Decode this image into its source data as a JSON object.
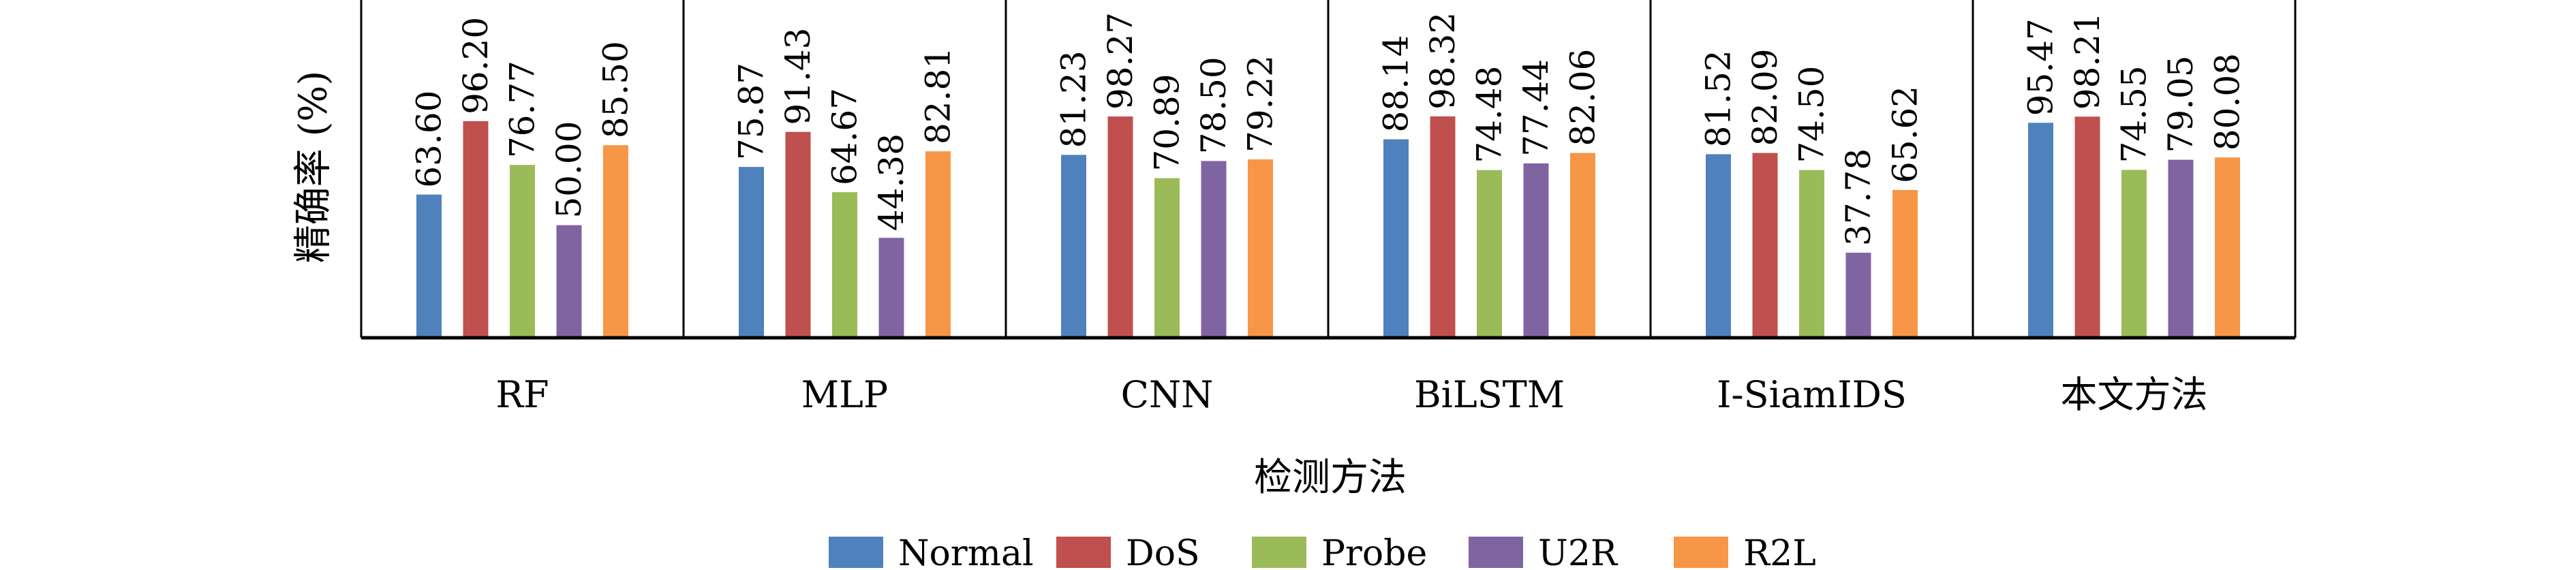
{
  "chart_data": {
    "type": "bar",
    "title": "",
    "xlabel": "检测方法",
    "ylabel": "精确率 (%)",
    "ylim": [
      0,
      150
    ],
    "grid": false,
    "legend_position": "bottom",
    "categories": [
      "RF",
      "MLP",
      "CNN",
      "BiLSTM",
      "I-SiamIDS",
      "本文方法"
    ],
    "series": [
      {
        "name": "Normal",
        "color": "#4F81BD",
        "values": [
          63.6,
          75.87,
          81.23,
          88.14,
          81.52,
          95.47
        ],
        "labels": [
          "63.60",
          "75.87",
          "81.23",
          "88.14",
          "81.52",
          "95.47"
        ]
      },
      {
        "name": "DoS",
        "color": "#C0504D",
        "values": [
          96.2,
          91.43,
          98.27,
          98.32,
          82.09,
          98.21
        ],
        "labels": [
          "96.20",
          "91.43",
          "98.27",
          "98.32",
          "82.09",
          "98.21"
        ]
      },
      {
        "name": "Probe",
        "color": "#9BBB59",
        "values": [
          76.77,
          64.67,
          70.89,
          74.48,
          74.5,
          74.55
        ],
        "labels": [
          "76.77",
          "64.67",
          "70.89",
          "74.48",
          "74.50",
          "74.55"
        ]
      },
      {
        "name": "U2R",
        "color": "#8064A2",
        "values": [
          50.0,
          44.38,
          78.5,
          77.44,
          37.78,
          79.05
        ],
        "labels": [
          "50.00",
          "44.38",
          "78.50",
          "77.44",
          "37.78",
          "79.05"
        ]
      },
      {
        "name": "R2L",
        "color": "#F79646",
        "values": [
          85.5,
          82.81,
          79.22,
          82.06,
          65.62,
          80.08
        ],
        "labels": [
          "85.50",
          "82.81",
          "79.22",
          "82.06",
          "65.62",
          "80.08"
        ]
      }
    ]
  }
}
